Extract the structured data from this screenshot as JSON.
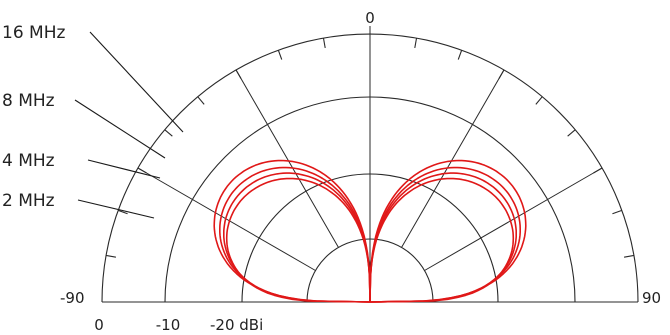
{
  "chart_data": {
    "type": "polar-radiation-pattern",
    "angle_labels": {
      "top": "0",
      "left": "-90",
      "right": "90"
    },
    "radial_labels": [
      "0",
      "-10",
      "-20 dBi"
    ],
    "series": [
      {
        "name": "16 MHz",
        "peak_rel": 0.94,
        "lobe": 0.85
      },
      {
        "name": "8 MHz",
        "peak_rel": 0.89,
        "lobe": 0.8
      },
      {
        "name": "4 MHz",
        "peak_rel": 0.85,
        "lobe": 0.75
      },
      {
        "name": "2 MHz",
        "peak_rel": 0.81,
        "lobe": 0.68
      }
    ],
    "color": "#e01818"
  }
}
